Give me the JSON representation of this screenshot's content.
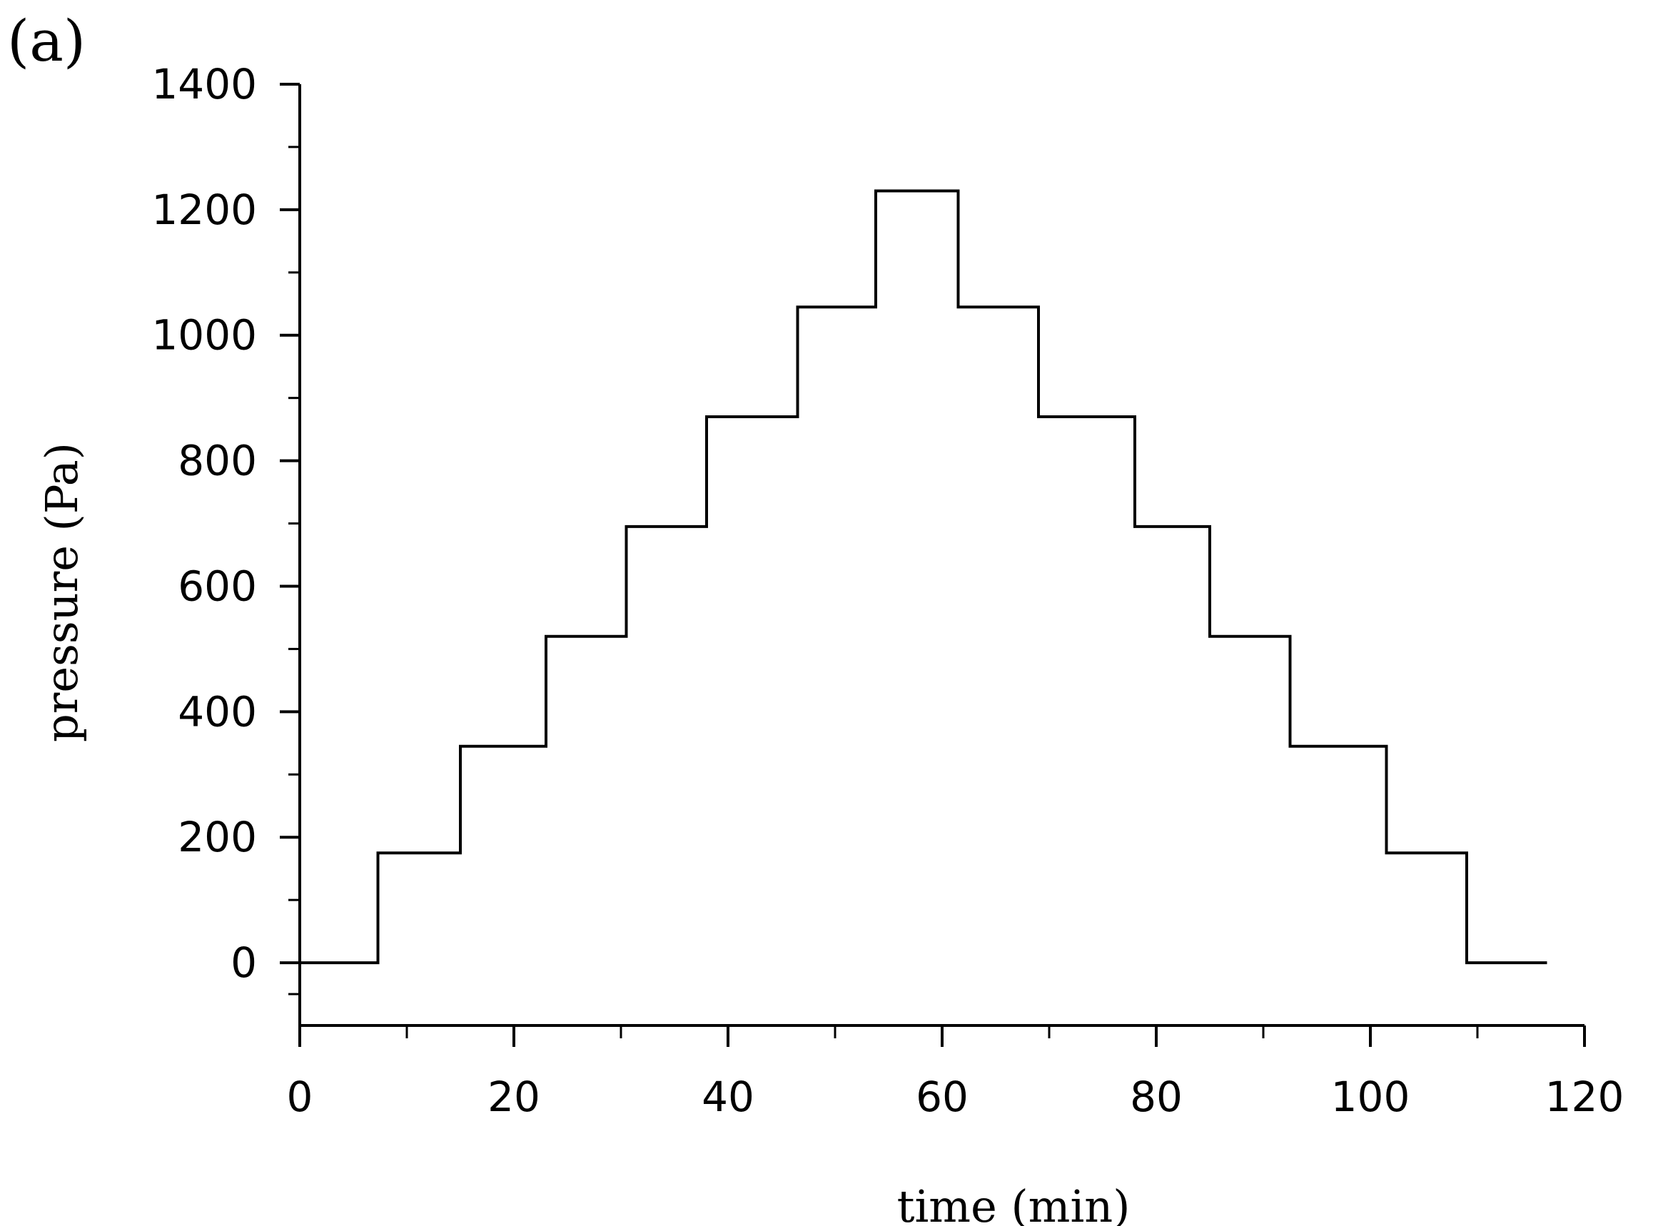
{
  "panel_label": "(a)",
  "chart_data": {
    "type": "line",
    "step": true,
    "xlabel": "time (min)",
    "ylabel": "pressure (Pa)",
    "xlim": [
      0,
      120
    ],
    "ylim": [
      -100,
      1400
    ],
    "xticks": [
      0,
      20,
      40,
      60,
      80,
      100,
      120
    ],
    "yticks": [
      0,
      200,
      400,
      600,
      800,
      1000,
      1200,
      1400
    ],
    "grid": false,
    "series": [
      {
        "x": [
          0,
          7.3,
          7.3,
          15,
          15,
          23,
          23,
          30.5,
          30.5,
          38,
          38,
          46.5,
          46.5,
          53.8,
          53.8,
          61.5,
          61.5,
          69,
          69,
          78,
          78,
          85,
          85,
          92.5,
          92.5,
          101.5,
          101.5,
          109,
          109,
          116.5
        ],
        "y": [
          0,
          0,
          175,
          175,
          345,
          345,
          520,
          520,
          695,
          695,
          870,
          870,
          1045,
          1045,
          1230,
          1230,
          1045,
          1045,
          870,
          870,
          695,
          695,
          520,
          520,
          345,
          345,
          175,
          175,
          0,
          0
        ]
      }
    ]
  }
}
